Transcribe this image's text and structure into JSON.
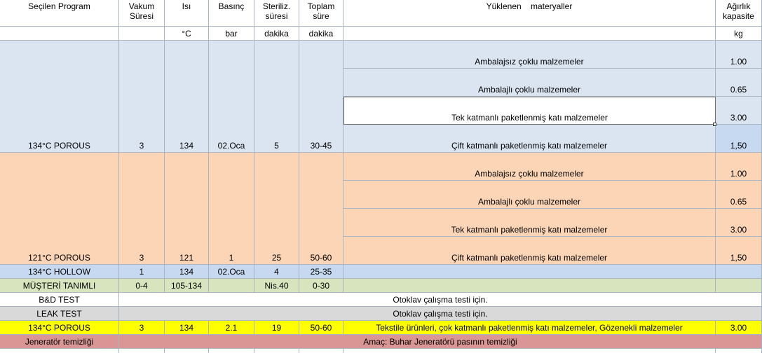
{
  "headers": {
    "program": "Seçilen Program",
    "vakum": "Vakum\nSüresi",
    "isi": "Isı",
    "basinc": "Basınç",
    "steriliz": "Steriliz.\nsüresi",
    "toplam": "Toplam\nsüre",
    "materyaller": "Yüklenen    materyaller",
    "agirlik": "Ağırlık\nkapasite"
  },
  "units": {
    "isi": "°C",
    "basinc": "bar",
    "steriliz": "dakika",
    "toplam": "dakika",
    "agirlik": "kg"
  },
  "porous134": {
    "program": "134°C POROUS",
    "vakum": "3",
    "isi": "134",
    "basinc": "02.Oca",
    "steriliz": "5",
    "toplam": "30-45",
    "materials": [
      {
        "name": "Ambalajsız çoklu malzemeler",
        "weight": "1.00"
      },
      {
        "name": "Ambalajlı çoklu malzemeler",
        "weight": "0.65"
      },
      {
        "name": "Tek katmanlı paketlenmiş katı malzemeler",
        "weight": "3.00"
      },
      {
        "name": "Çift katmanlı paketlenmiş katı malzemeler",
        "weight": "1,50"
      }
    ]
  },
  "porous121": {
    "program": "121°C POROUS",
    "vakum": "3",
    "isi": "121",
    "basinc": "1",
    "steriliz": "25",
    "toplam": "50-60",
    "materials": [
      {
        "name": "Ambalajsız çoklu malzemeler",
        "weight": "1.00"
      },
      {
        "name": "Ambalajlı çoklu malzemeler",
        "weight": "0.65"
      },
      {
        "name": "Tek katmanlı paketlenmiş katı malzemeler",
        "weight": "3.00"
      },
      {
        "name": "Çift katmanlı paketlenmiş katı malzemeler",
        "weight": "1,50"
      }
    ]
  },
  "hollow": {
    "program": "134°C HOLLOW",
    "vakum": "1",
    "isi": "134",
    "basinc": "02.Oca",
    "steriliz": "4",
    "toplam": "25-35"
  },
  "musteri": {
    "program": "MÜŞTERİ TANIMLI",
    "vakum": "0-4",
    "isi": "105-134",
    "steriliz": "Nis.40",
    "toplam": "0-30"
  },
  "bd": {
    "program": "B&D TEST",
    "note": "Otoklav çalışma testi için."
  },
  "leak": {
    "program": "LEAK TEST",
    "note": "Otoklav çalışma testi için."
  },
  "porous134b": {
    "program": "134°C POROUS",
    "vakum": "3",
    "isi": "134",
    "basinc": "2.1",
    "steriliz": "19",
    "toplam": "50-60",
    "materials": "Tekstile ürünleri, çok katmanlı paketlenmiş katı malzemeler, Gözenekli malzemeler",
    "weight": "3.00"
  },
  "jenerator": {
    "program": "Jeneratör temizliği",
    "note": "Amaç: Buhar Jeneratörü pasının temizliği"
  },
  "colors": {
    "blue": "#dbe5f1",
    "orange": "#fbd5b5",
    "hollow": "#c6d9f1",
    "green": "#d7e4bd",
    "gray": "#d9d9d9",
    "yellow": "#ffff00",
    "rose": "#d99694"
  }
}
